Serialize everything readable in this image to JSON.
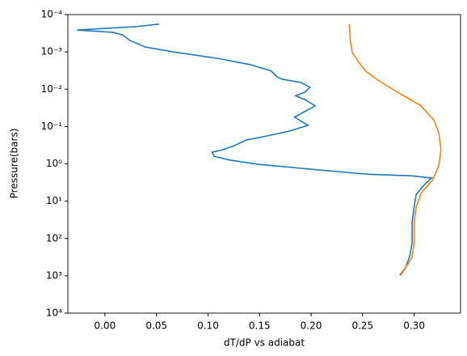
{
  "chart_data": {
    "type": "line",
    "xlabel": "dT/dP vs adiabat",
    "ylabel": "Pressure(bars)",
    "xlim": [
      -0.036,
      0.345
    ],
    "xticks": [
      {
        "value": 0,
        "label": "0.00"
      },
      {
        "value": 0.05,
        "label": "0.05"
      },
      {
        "value": 0.1,
        "label": "0.10"
      },
      {
        "value": 0.15,
        "label": "0.15"
      },
      {
        "value": 0.2,
        "label": "0.20"
      },
      {
        "value": 0.25,
        "label": "0.25"
      },
      {
        "value": 0.3,
        "label": "0.30"
      }
    ],
    "ylim": [
      0.0001,
      10000
    ],
    "y_log": true,
    "y_inverted": true,
    "yticks": [
      {
        "value": 0.0001,
        "label": "10⁻⁴"
      },
      {
        "value": 0.001,
        "label": "10⁻³"
      },
      {
        "value": 0.01,
        "label": "10⁻²"
      },
      {
        "value": 0.1,
        "label": "10⁻¹"
      },
      {
        "value": 1,
        "label": "10⁰"
      },
      {
        "value": 10,
        "label": "10¹"
      },
      {
        "value": 100,
        "label": "10²"
      },
      {
        "value": 1000,
        "label": "10³"
      },
      {
        "value": 10000,
        "label": "10⁴"
      }
    ],
    "series": [
      {
        "color": "#1f77b4",
        "x": [
          0.0525,
          0.03,
          -0.027,
          0.008,
          0.017,
          0.024,
          0.039,
          0.071,
          0.11,
          0.141,
          0.161,
          0.167,
          0.172,
          0.19,
          0.199,
          0.194,
          0.185,
          0.194,
          0.204,
          0.195,
          0.184,
          0.197,
          0.18,
          0.157,
          0.137,
          0.125,
          0.114,
          0.104,
          0.106,
          0.121,
          0.149,
          0.188,
          0.235,
          0.255,
          0.298,
          0.317,
          0.31,
          0.302,
          0.3,
          0.298,
          0.298,
          0.296,
          0.292,
          0.286
        ],
        "values": [
          0.00018,
          0.00021,
          0.00026,
          0.0003,
          0.00035,
          0.00049,
          0.00074,
          0.00105,
          0.0015,
          0.0022,
          0.0032,
          0.0047,
          0.0054,
          0.0066,
          0.0089,
          0.012,
          0.015,
          0.019,
          0.028,
          0.038,
          0.056,
          0.093,
          0.13,
          0.18,
          0.23,
          0.33,
          0.42,
          0.49,
          0.63,
          0.79,
          1.03,
          1.3,
          1.7,
          1.9,
          2.1,
          2.4,
          3.6,
          6.6,
          14,
          37,
          130,
          277,
          590,
          960
        ]
      },
      {
        "color": "#ff7f0e",
        "x": [
          0.237,
          0.238,
          0.24,
          0.245,
          0.253,
          0.266,
          0.286,
          0.306,
          0.319,
          0.324,
          0.326,
          0.324,
          0.318,
          0.307,
          0.302,
          0.3,
          0.3,
          0.298,
          0.292,
          0.287
        ],
        "values": [
          0.00018,
          0.00049,
          0.00105,
          0.0017,
          0.0033,
          0.006,
          0.013,
          0.027,
          0.066,
          0.15,
          0.42,
          1.1,
          2.7,
          5.9,
          14,
          37,
          130,
          320,
          590,
          960
        ]
      }
    ]
  }
}
